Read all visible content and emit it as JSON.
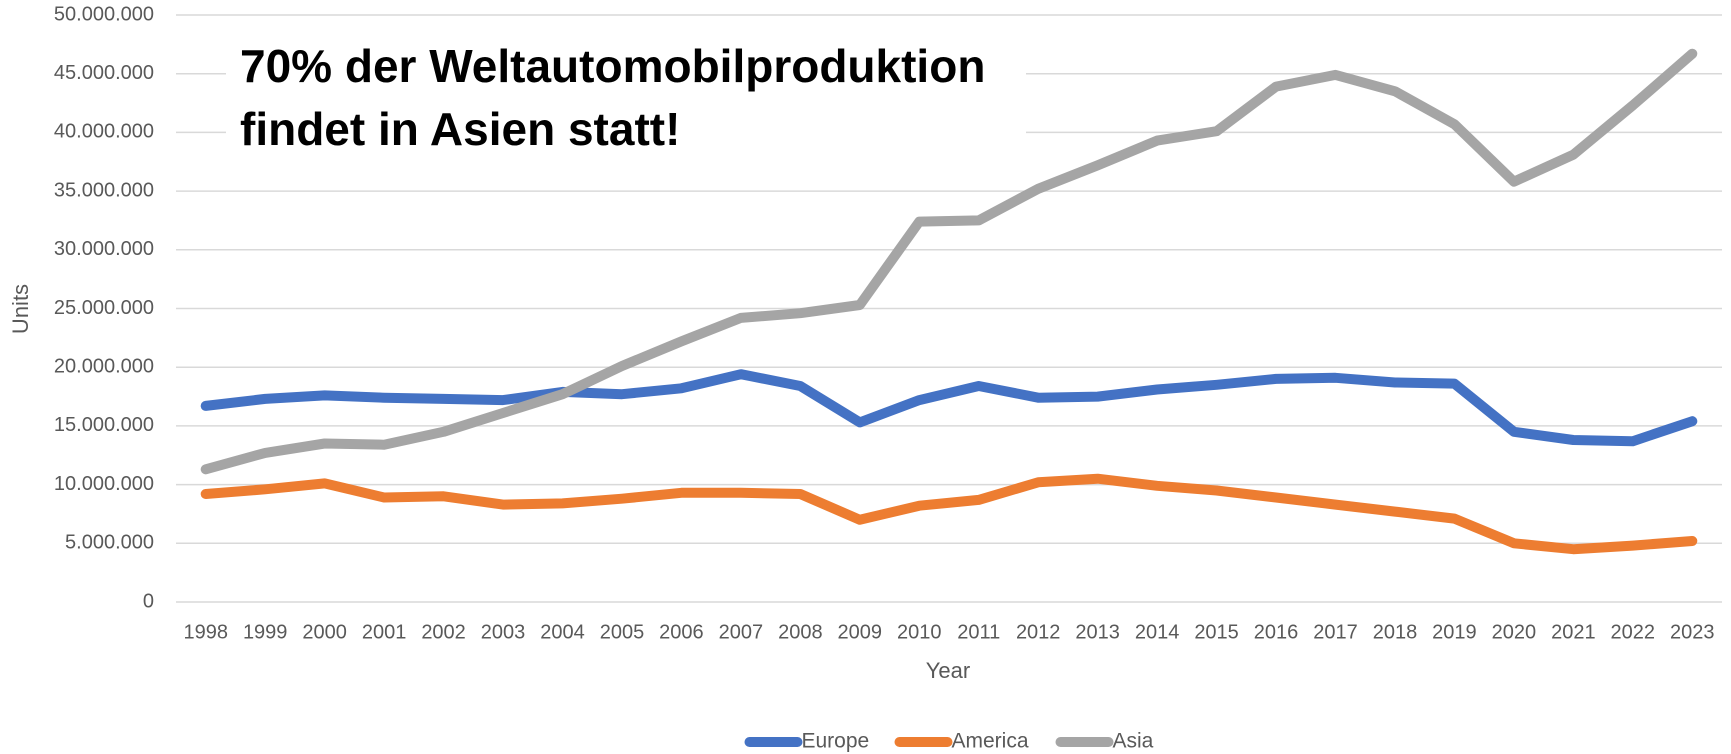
{
  "chart_data": {
    "type": "line",
    "annotation": [
      "70% der Weltautomobilproduktion",
      "findet in Asien statt!"
    ],
    "x_label": "Year",
    "y_label": "Units",
    "categories": [
      "1998",
      "1999",
      "2000",
      "2001",
      "2002",
      "2003",
      "2004",
      "2005",
      "2006",
      "2007",
      "2008",
      "2009",
      "2010",
      "2011",
      "2012",
      "2013",
      "2014",
      "2015",
      "2016",
      "2017",
      "2018",
      "2019",
      "2020",
      "2021",
      "2022",
      "2023"
    ],
    "series": [
      {
        "name": "Europe",
        "color": "#4472c4",
        "values": [
          16700000,
          17300000,
          17600000,
          17400000,
          17300000,
          17200000,
          17900000,
          17700000,
          18200000,
          19400000,
          18400000,
          15300000,
          17200000,
          18400000,
          17400000,
          17500000,
          18100000,
          18500000,
          19000000,
          19100000,
          18700000,
          18600000,
          14500000,
          13800000,
          13700000,
          15400000
        ]
      },
      {
        "name": "America",
        "color": "#ed7d31",
        "values": [
          9200000,
          9600000,
          10100000,
          8900000,
          9000000,
          8300000,
          8400000,
          8800000,
          9300000,
          9300000,
          9200000,
          7000000,
          8200000,
          8700000,
          10200000,
          10500000,
          9900000,
          9500000,
          8900000,
          8300000,
          7700000,
          7100000,
          5000000,
          4500000,
          4800000,
          5200000
        ]
      },
      {
        "name": "Asia",
        "color": "#a5a5a5",
        "values": [
          11300000,
          12700000,
          13500000,
          13400000,
          14500000,
          16100000,
          17700000,
          20100000,
          22200000,
          24200000,
          24600000,
          25300000,
          32400000,
          32500000,
          35200000,
          37200000,
          39300000,
          40100000,
          43900000,
          44900000,
          43500000,
          40700000,
          35800000,
          38100000,
          42300000,
          46700000
        ]
      }
    ],
    "ylim": [
      0,
      50000000
    ],
    "yticks": [
      0,
      {
        "value": 5000000,
        "label": "5.000.000"
      },
      {
        "value": 10000000,
        "label": "10.000.000"
      },
      {
        "value": 15000000,
        "label": "15.000.000"
      },
      {
        "value": 20000000,
        "label": "20.000.000"
      },
      {
        "value": 25000000,
        "label": "25.000.000"
      },
      {
        "value": 30000000,
        "label": "30.000.000"
      },
      {
        "value": 35000000,
        "label": "35.000.000"
      },
      {
        "value": 40000000,
        "label": "40.000.000"
      },
      {
        "value": 45000000,
        "label": "45.000.000"
      },
      {
        "value": 50000000,
        "label": "50.000.000"
      }
    ],
    "grid": true,
    "legend": "bottom"
  }
}
